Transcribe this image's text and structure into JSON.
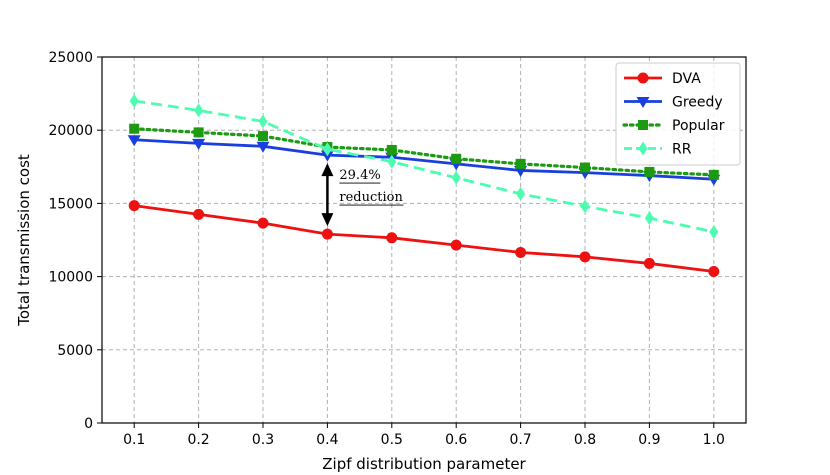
{
  "chart_data": {
    "type": "line",
    "title": "",
    "xlabel": "Zipf distribution parameter",
    "ylabel": "Total transmission cost",
    "x": [
      0.1,
      0.2,
      0.3,
      0.4,
      0.5,
      0.6,
      0.7,
      0.8,
      0.9,
      1.0
    ],
    "x_tick_labels": [
      "0.1",
      "0.2",
      "0.3",
      "0.4",
      "0.5",
      "0.6",
      "0.7",
      "0.8",
      "0.9",
      "1.0"
    ],
    "y_ticks": [
      0,
      5000,
      10000,
      15000,
      20000,
      25000
    ],
    "y_tick_labels": [
      "0",
      "5000",
      "10000",
      "15000",
      "20000",
      "25000"
    ],
    "xlim": [
      0.05,
      1.05
    ],
    "ylim": [
      0,
      25000
    ],
    "grid": true,
    "legend_position": "top-right",
    "series": [
      {
        "name": "DVA",
        "color": "#ee1111",
        "line_style": "solid",
        "marker": "circle",
        "values": [
          14850,
          14250,
          13650,
          12900,
          12650,
          12150,
          11650,
          11350,
          10900,
          10350
        ]
      },
      {
        "name": "Greedy",
        "color": "#1a3fe0",
        "line_style": "solid",
        "marker": "triangle-down",
        "values": [
          19350,
          19100,
          18900,
          18300,
          18150,
          17700,
          17250,
          17100,
          16900,
          16650
        ]
      },
      {
        "name": "Popular",
        "color": "#1c9a12",
        "line_style": "dotted",
        "marker": "square",
        "values": [
          20100,
          19850,
          19600,
          18850,
          18650,
          18050,
          17700,
          17450,
          17150,
          16950
        ]
      },
      {
        "name": "RR",
        "color": "#4dfcb0",
        "line_style": "dashed",
        "marker": "diamond",
        "values": [
          22000,
          21350,
          20600,
          18700,
          17850,
          16750,
          15650,
          14800,
          14000,
          13050
        ]
      }
    ],
    "annotations": [
      {
        "text_line1": "29.4%",
        "text_line2": "reduction",
        "x": 0.4,
        "y_from": 12900,
        "y_to": 18300
      }
    ]
  }
}
